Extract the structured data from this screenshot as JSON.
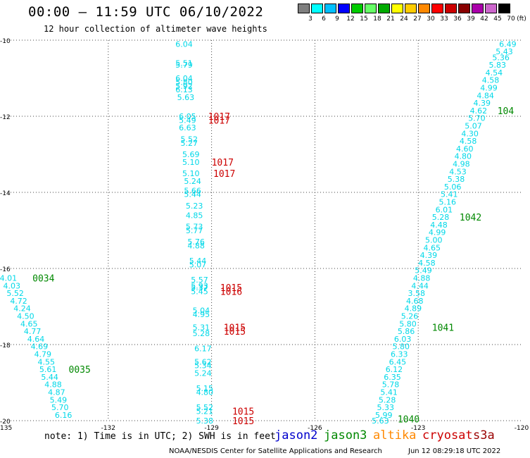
{
  "header": {
    "title": "00:00 – 11:59 UTC 06/10/2022",
    "subtitle": "12 hour collection of altimeter wave heights"
  },
  "colorbar": {
    "colors": [
      "#7f7f7f",
      "#00ffff",
      "#00bfff",
      "#0000ff",
      "#00cc00",
      "#66ff66",
      "#00aa00",
      "#ffff00",
      "#ffcc00",
      "#ff8800",
      "#ff0000",
      "#cc0000",
      "#880000",
      "#aa00aa",
      "#cc66cc",
      "#000000"
    ],
    "labels": [
      "3",
      "6",
      "9",
      "12",
      "15",
      "18",
      "21",
      "24",
      "27",
      "30",
      "33",
      "36",
      "39",
      "42",
      "45",
      "70"
    ],
    "unit": "(ft)"
  },
  "map": {
    "lat_labels": [
      "-10",
      "-12",
      "-14",
      "-16",
      "-18",
      "-20"
    ],
    "lon_labels": [
      "-135",
      "-132",
      "-129",
      "-126",
      "-123",
      "-120"
    ],
    "lon_range": [
      -135,
      -120
    ],
    "lat_range": [
      -20,
      -10
    ],
    "swh_color": "#00d8e8",
    "track_colors": {
      "jason3": "#008800",
      "s3a": "#cc0000"
    },
    "swh_labels": [
      {
        "lat": -10.1,
        "lon": -129.8,
        "text": "6.04"
      },
      {
        "lat": -10.6,
        "lon": -129.8,
        "text": "5.51"
      },
      {
        "lat": -10.65,
        "lon": -129.8,
        "text": "5.79"
      },
      {
        "lat": -11.0,
        "lon": -129.8,
        "text": "6.04"
      },
      {
        "lat": -11.1,
        "lon": -129.8,
        "text": "5.80"
      },
      {
        "lat": -11.2,
        "lon": -129.8,
        "text": "5.92"
      },
      {
        "lat": -11.3,
        "lon": -129.8,
        "text": "6.13"
      },
      {
        "lat": -11.5,
        "lon": -129.75,
        "text": "5.63"
      },
      {
        "lat": -12.0,
        "lon": -129.7,
        "text": "6.05"
      },
      {
        "lat": -12.1,
        "lon": -129.7,
        "text": "5.49"
      },
      {
        "lat": -12.3,
        "lon": -129.7,
        "text": "6.63"
      },
      {
        "lat": -12.6,
        "lon": -129.65,
        "text": "5.52"
      },
      {
        "lat": -12.7,
        "lon": -129.65,
        "text": "5.27"
      },
      {
        "lat": -13.0,
        "lon": -129.6,
        "text": "5.69"
      },
      {
        "lat": -13.2,
        "lon": -129.6,
        "text": "5.10"
      },
      {
        "lat": -13.5,
        "lon": -129.6,
        "text": "5.10"
      },
      {
        "lat": -13.7,
        "lon": -129.55,
        "text": "5.24"
      },
      {
        "lat": -13.95,
        "lon": -129.55,
        "text": "5.66"
      },
      {
        "lat": -14.05,
        "lon": -129.55,
        "text": "5.44"
      },
      {
        "lat": -14.35,
        "lon": -129.5,
        "text": "5.23"
      },
      {
        "lat": -14.6,
        "lon": -129.5,
        "text": "4.85"
      },
      {
        "lat": -14.9,
        "lon": -129.5,
        "text": "5.73"
      },
      {
        "lat": -15.0,
        "lon": -129.5,
        "text": "5.77"
      },
      {
        "lat": -15.3,
        "lon": -129.45,
        "text": "5.76"
      },
      {
        "lat": -15.4,
        "lon": -129.45,
        "text": "4.88"
      },
      {
        "lat": -15.8,
        "lon": -129.4,
        "text": "5.44"
      },
      {
        "lat": -15.9,
        "lon": -129.4,
        "text": "5.07"
      },
      {
        "lat": -16.3,
        "lon": -129.35,
        "text": "5.57"
      },
      {
        "lat": -16.45,
        "lon": -129.35,
        "text": "5.93"
      },
      {
        "lat": -16.5,
        "lon": -129.35,
        "text": "5.37"
      },
      {
        "lat": -16.6,
        "lon": -129.35,
        "text": "5.45"
      },
      {
        "lat": -17.1,
        "lon": -129.3,
        "text": "5.04"
      },
      {
        "lat": -17.2,
        "lon": -129.3,
        "text": "4.95"
      },
      {
        "lat": -17.55,
        "lon": -129.3,
        "text": "5.31"
      },
      {
        "lat": -17.7,
        "lon": -129.3,
        "text": "5.28"
      },
      {
        "lat": -18.1,
        "lon": -129.25,
        "text": "6.17"
      },
      {
        "lat": -18.45,
        "lon": -129.25,
        "text": "5.62"
      },
      {
        "lat": -18.55,
        "lon": -129.25,
        "text": "5.34"
      },
      {
        "lat": -18.75,
        "lon": -129.25,
        "text": "5.24"
      },
      {
        "lat": -19.15,
        "lon": -129.2,
        "text": "5.15"
      },
      {
        "lat": -19.25,
        "lon": -129.2,
        "text": "4.80"
      },
      {
        "lat": -19.65,
        "lon": -129.2,
        "text": "5.52"
      },
      {
        "lat": -19.75,
        "lon": -129.2,
        "text": "5.21"
      },
      {
        "lat": -20.0,
        "lon": -129.2,
        "text": "5.38"
      },
      {
        "lat": -16.25,
        "lon": -134.9,
        "text": "4.01"
      },
      {
        "lat": -16.45,
        "lon": -134.8,
        "text": "4.03"
      },
      {
        "lat": -16.65,
        "lon": -134.7,
        "text": "5.52"
      },
      {
        "lat": -16.85,
        "lon": -134.6,
        "text": "4.72"
      },
      {
        "lat": -17.05,
        "lon": -134.5,
        "text": "4.24"
      },
      {
        "lat": -17.25,
        "lon": -134.4,
        "text": "4.50"
      },
      {
        "lat": -17.45,
        "lon": -134.3,
        "text": "4.65"
      },
      {
        "lat": -17.65,
        "lon": -134.2,
        "text": "4.77"
      },
      {
        "lat": -17.85,
        "lon": -134.1,
        "text": "4.64"
      },
      {
        "lat": -18.05,
        "lon": -134.0,
        "text": "4.69"
      },
      {
        "lat": -18.25,
        "lon": -133.9,
        "text": "4.79"
      },
      {
        "lat": -18.45,
        "lon": -133.8,
        "text": "4.55"
      },
      {
        "lat": -18.65,
        "lon": -133.75,
        "text": "5.61"
      },
      {
        "lat": -18.85,
        "lon": -133.7,
        "text": "5.44"
      },
      {
        "lat": -19.05,
        "lon": -133.6,
        "text": "4.88"
      },
      {
        "lat": -19.25,
        "lon": -133.5,
        "text": "4.87"
      },
      {
        "lat": -19.45,
        "lon": -133.45,
        "text": "5.49"
      },
      {
        "lat": -19.65,
        "lon": -133.4,
        "text": "5.70"
      },
      {
        "lat": -19.85,
        "lon": -133.3,
        "text": "6.16"
      },
      {
        "lat": -10.1,
        "lon": -120.4,
        "text": "6.49"
      },
      {
        "lat": -10.3,
        "lon": -120.5,
        "text": "5.43"
      },
      {
        "lat": -10.45,
        "lon": -120.6,
        "text": "5.36"
      },
      {
        "lat": -10.65,
        "lon": -120.7,
        "text": "5.83"
      },
      {
        "lat": -10.85,
        "lon": -120.8,
        "text": "4.54"
      },
      {
        "lat": -11.05,
        "lon": -120.9,
        "text": "4.58"
      },
      {
        "lat": -11.25,
        "lon": -120.95,
        "text": "4.99"
      },
      {
        "lat": -11.45,
        "lon": -121.05,
        "text": "4.84"
      },
      {
        "lat": -11.65,
        "lon": -121.15,
        "text": "4.39"
      },
      {
        "lat": -11.85,
        "lon": -121.25,
        "text": "4.62"
      },
      {
        "lat": -12.05,
        "lon": -121.3,
        "text": "5.70"
      },
      {
        "lat": -12.25,
        "lon": -121.4,
        "text": "5.07"
      },
      {
        "lat": -12.45,
        "lon": -121.5,
        "text": "4.30"
      },
      {
        "lat": -12.65,
        "lon": -121.55,
        "text": "4.58"
      },
      {
        "lat": -12.85,
        "lon": -121.65,
        "text": "4.60"
      },
      {
        "lat": -13.05,
        "lon": -121.7,
        "text": "4.80"
      },
      {
        "lat": -13.25,
        "lon": -121.75,
        "text": "4.98"
      },
      {
        "lat": -13.45,
        "lon": -121.85,
        "text": "4.53"
      },
      {
        "lat": -13.65,
        "lon": -121.9,
        "text": "5.38"
      },
      {
        "lat": -13.85,
        "lon": -122.0,
        "text": "5.06"
      },
      {
        "lat": -14.05,
        "lon": -122.1,
        "text": "5.41"
      },
      {
        "lat": -14.25,
        "lon": -122.15,
        "text": "5.16"
      },
      {
        "lat": -14.45,
        "lon": -122.25,
        "text": "6.01"
      },
      {
        "lat": -14.65,
        "lon": -122.35,
        "text": "5.28"
      },
      {
        "lat": -14.85,
        "lon": -122.4,
        "text": "4.48"
      },
      {
        "lat": -15.05,
        "lon": -122.45,
        "text": "4.99"
      },
      {
        "lat": -15.25,
        "lon": -122.55,
        "text": "5.00"
      },
      {
        "lat": -15.45,
        "lon": -122.6,
        "text": "4.65"
      },
      {
        "lat": -15.65,
        "lon": -122.7,
        "text": "4.39"
      },
      {
        "lat": -15.85,
        "lon": -122.75,
        "text": "4.58"
      },
      {
        "lat": -16.05,
        "lon": -122.85,
        "text": "5.49"
      },
      {
        "lat": -16.25,
        "lon": -122.9,
        "text": "4.88"
      },
      {
        "lat": -16.45,
        "lon": -122.95,
        "text": "4.44"
      },
      {
        "lat": -16.65,
        "lon": -123.05,
        "text": "3.58"
      },
      {
        "lat": -16.85,
        "lon": -123.1,
        "text": "4.68"
      },
      {
        "lat": -17.05,
        "lon": -123.15,
        "text": "4.89"
      },
      {
        "lat": -17.25,
        "lon": -123.25,
        "text": "5.26"
      },
      {
        "lat": -17.45,
        "lon": -123.3,
        "text": "5.80"
      },
      {
        "lat": -17.65,
        "lon": -123.35,
        "text": "5.86"
      },
      {
        "lat": -17.85,
        "lon": -123.45,
        "text": "6.03"
      },
      {
        "lat": -18.05,
        "lon": -123.5,
        "text": "5.80"
      },
      {
        "lat": -18.25,
        "lon": -123.55,
        "text": "6.33"
      },
      {
        "lat": -18.45,
        "lon": -123.6,
        "text": "6.45"
      },
      {
        "lat": -18.65,
        "lon": -123.7,
        "text": "6.12"
      },
      {
        "lat": -18.85,
        "lon": -123.75,
        "text": "6.35"
      },
      {
        "lat": -19.05,
        "lon": -123.8,
        "text": "5.78"
      },
      {
        "lat": -19.25,
        "lon": -123.85,
        "text": "5.41"
      },
      {
        "lat": -19.45,
        "lon": -123.9,
        "text": "5.28"
      },
      {
        "lat": -19.65,
        "lon": -123.95,
        "text": "5.33"
      },
      {
        "lat": -19.85,
        "lon": -124.0,
        "text": "5.99"
      },
      {
        "lat": -20.0,
        "lon": -124.1,
        "text": "5.63"
      }
    ],
    "track_labels": [
      {
        "lat": -16.25,
        "lon": -134.2,
        "text": "0034",
        "sat": "jason3"
      },
      {
        "lat": -18.65,
        "lon": -133.15,
        "text": "0035",
        "sat": "jason3"
      },
      {
        "lat": -11.85,
        "lon": -120.7,
        "text": "104",
        "sat": "jason3"
      },
      {
        "lat": -14.65,
        "lon": -121.8,
        "text": "1042",
        "sat": "jason3"
      },
      {
        "lat": -17.55,
        "lon": -122.6,
        "text": "1041",
        "sat": "jason3"
      },
      {
        "lat": -19.95,
        "lon": -123.6,
        "text": "1040",
        "sat": "jason3"
      },
      {
        "lat": -12.0,
        "lon": -129.1,
        "text": "1017",
        "sat": "s3a"
      },
      {
        "lat": -12.1,
        "lon": -129.1,
        "text": "1017",
        "sat": "s3a"
      },
      {
        "lat": -13.2,
        "lon": -129.0,
        "text": "1017",
        "sat": "s3a"
      },
      {
        "lat": -13.5,
        "lon": -128.95,
        "text": "1017",
        "sat": "s3a"
      },
      {
        "lat": -16.5,
        "lon": -128.75,
        "text": "1015",
        "sat": "s3a"
      },
      {
        "lat": -16.6,
        "lon": -128.75,
        "text": "1016",
        "sat": "s3a"
      },
      {
        "lat": -17.55,
        "lon": -128.65,
        "text": "1015",
        "sat": "s3a"
      },
      {
        "lat": -17.65,
        "lon": -128.65,
        "text": "1015",
        "sat": "s3a"
      },
      {
        "lat": -19.75,
        "lon": -128.4,
        "text": "1015",
        "sat": "s3a"
      },
      {
        "lat": -20.0,
        "lon": -128.4,
        "text": "1015",
        "sat": "s3a"
      }
    ]
  },
  "footer": {
    "note": "note: 1) Time is in UTC; 2) SWH is in feet",
    "satellites": [
      {
        "name": "jason2",
        "color": "#0000cc"
      },
      {
        "name": "jason3",
        "color": "#008800"
      },
      {
        "name": "altika",
        "color": "#ff8800"
      },
      {
        "name": "cryosat",
        "color": "#cc0000"
      },
      {
        "name": "s3a",
        "color": "#990000"
      }
    ],
    "credit": "NOAA/NESDIS Center for Satellite Applications and Research",
    "timestamp": "Jun 12 08:29:18 UTC 2022"
  }
}
